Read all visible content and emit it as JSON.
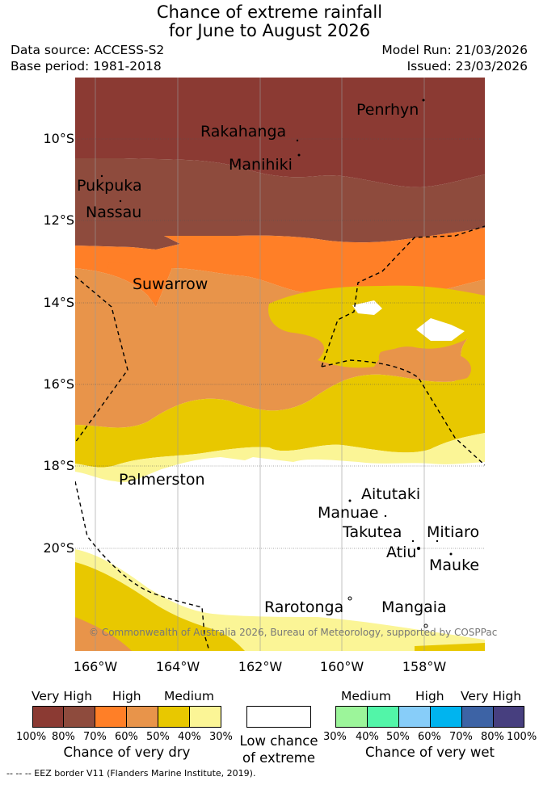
{
  "header": {
    "title_line1": "Chance of extreme rainfall",
    "title_line2": "for June to August 2026",
    "data_source": "Data source: ACCESS-S2",
    "base_period": "Base period: 1981-2018",
    "model_run": "Model Run: 21/03/2026",
    "issued": "Issued: 23/03/2026"
  },
  "map": {
    "lat_labels": [
      "10°S",
      "12°S",
      "14°S",
      "16°S",
      "18°S",
      "20°S"
    ],
    "lon_labels": [
      "166°W",
      "164°W",
      "162°W",
      "160°W",
      "158°W"
    ],
    "islands": [
      "Penrhyn",
      "Rakahanga",
      "Manihiki",
      "Pukpuka",
      "Nassau",
      "Suwarrow",
      "Palmerston",
      "Aitutaki",
      "Manuae",
      "Takutea",
      "Mitiaro",
      "Atiu",
      "Mauke",
      "Rarotonga",
      "Mangaia"
    ],
    "copyright": "© Commonwealth of Australia 2026, Bureau of Meteorology, supported by COSPPac",
    "colors": {
      "dry_100_80": "#8b3a33",
      "dry_80_70": "#8e4b3d",
      "dry_70_60": "#ff7f27",
      "dry_60_50": "#e8944a",
      "dry_50_40": "#e8c800",
      "dry_40_30": "#fbf596",
      "low": "#ffffff"
    }
  },
  "legend": {
    "dry": {
      "headings": [
        "Very High",
        "High",
        "Medium"
      ],
      "ticks": [
        "100%",
        "80%",
        "70%",
        "60%",
        "50%",
        "40%",
        "30%"
      ],
      "caption": "Chance of very dry",
      "colors": [
        "#8b3a33",
        "#8e4b3d",
        "#ff7f27",
        "#e8944a",
        "#e8c800",
        "#fbf596"
      ]
    },
    "low": {
      "caption_line1": "Low chance",
      "caption_line2": "of extreme",
      "color": "#ffffff"
    },
    "wet": {
      "headings": [
        "Medium",
        "High",
        "Very High"
      ],
      "ticks": [
        "30%",
        "40%",
        "50%",
        "60%",
        "70%",
        "80%",
        "100%"
      ],
      "caption": "Chance of very wet",
      "colors": [
        "#9cf59a",
        "#52f5a8",
        "#87cdf9",
        "#00b4ef",
        "#3d63a5",
        "#473f7f"
      ]
    }
  },
  "footnote": "-- -- -- EEZ border V11 (Flanders Marine Institute, 2019)."
}
